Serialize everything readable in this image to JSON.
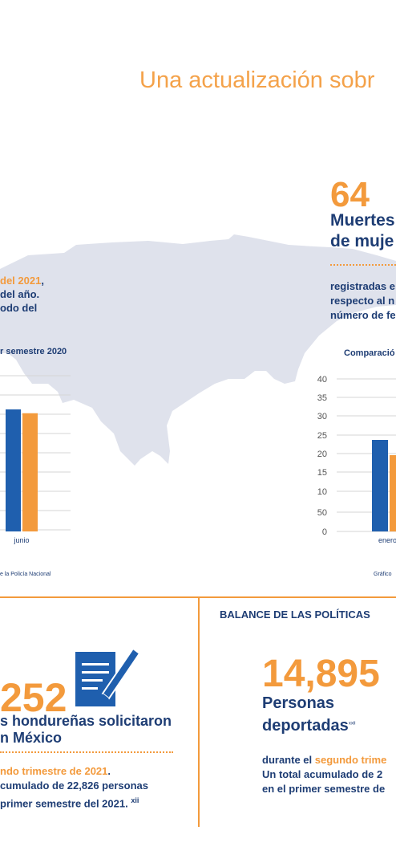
{
  "title": "Una actualización sobr",
  "colors": {
    "blue": "#1f5fae",
    "orange": "#f39a3c",
    "navy": "#1e3d74",
    "map": "#dfe2ec"
  },
  "left_top": {
    "line1_orange": "del 2021",
    "line1_rest": ",",
    "line2": "del año.",
    "line3": "odo del",
    "chart_title": "r semestre 2020",
    "source": "e la Policía Nacional",
    "chart_data": {
      "type": "bar",
      "categories": [
        "junio"
      ],
      "series": [
        {
          "values": [
            32
          ]
        },
        {
          "values": [
            31
          ]
        }
      ]
    }
  },
  "right_top": {
    "count": "64",
    "heading_line1": "Muertes",
    "heading_line2": "de muje",
    "text_line1": "registradas e",
    "text_line2": "respecto al n",
    "text_line3": "número de fe",
    "chart_title": "Comparació",
    "source": "Gráfico",
    "chart_data": {
      "type": "bar",
      "categories": [
        "enero"
      ],
      "yticks": [
        "40",
        "35",
        "30",
        "25",
        "20",
        "15",
        "10",
        "50",
        "0"
      ],
      "series": [
        {
          "values": [
            24
          ]
        },
        {
          "values": [
            20
          ]
        }
      ]
    }
  },
  "bottom_left": {
    "count": "252",
    "heading_line1": "s hondureñas solicitaron",
    "heading_line2": "n México",
    "text_line1_orange": "ndo trimestre de 2021",
    "text_line1_rest": ".",
    "text_line2": "cumulado de 22,826 personas",
    "text_line3": "primer semestre del 2021.",
    "superscript": "xii"
  },
  "bottom_right": {
    "section_title": "BALANCE DE LAS POLÍTICAS",
    "count": "14,895",
    "heading_line1": "Personas",
    "heading_line2": "deportadas",
    "superscript": "xxii",
    "text_line1_prefix": "durante el ",
    "text_line1_orange": "segundo trime",
    "text_line2": "Un total acumulado de 2",
    "text_line3": "en el primer semestre de"
  }
}
